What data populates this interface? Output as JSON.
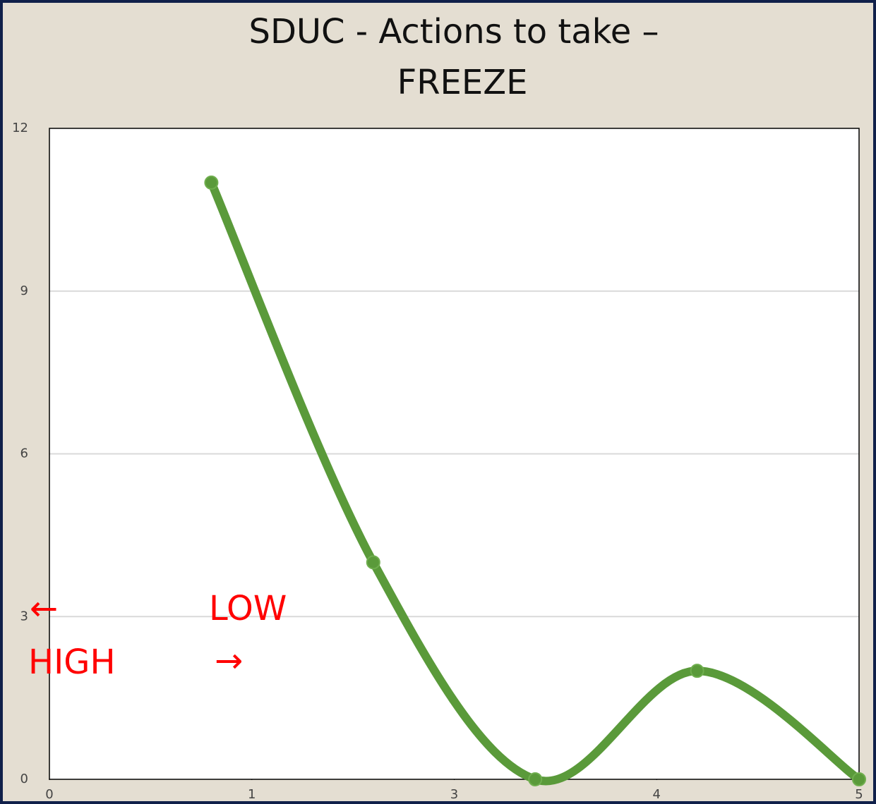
{
  "chart_data": {
    "type": "line",
    "title_lines": [
      "SDUC - Actions to take –",
      "FREEZE"
    ],
    "x": [
      0.8,
      1.6,
      2.4,
      3.2,
      4.0
    ],
    "values": [
      11,
      4,
      0,
      2,
      0
    ],
    "color": "#5a9a3a",
    "smooth": true,
    "xlim": [
      0,
      4
    ],
    "xticks": [
      0,
      1,
      {
        "value": 2,
        "label": "3"
      },
      {
        "value": 3,
        "label": "4"
      },
      {
        "value": 4,
        "label": "5"
      }
    ],
    "ylim": [
      0,
      12
    ],
    "yticks": [
      0,
      3,
      6,
      9,
      12
    ],
    "grid": true,
    "annotations": [
      "←",
      "HIGH",
      "LOW",
      "→"
    ],
    "annotation_color": "#ff0000"
  }
}
